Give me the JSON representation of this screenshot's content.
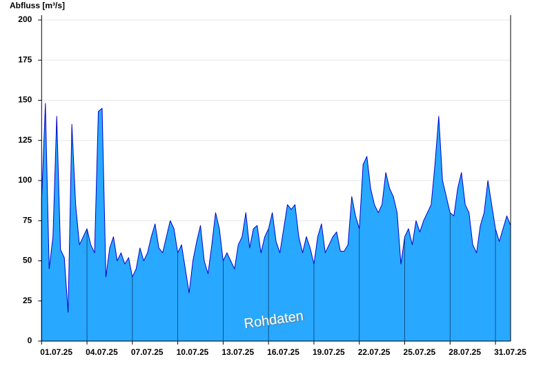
{
  "chart_data": {
    "type": "area",
    "title": "Abfluss [m³/s]",
    "annotation": "Rohdaten",
    "x": [
      1,
      1.25,
      1.5,
      1.75,
      2,
      2.25,
      2.5,
      2.75,
      3,
      3.25,
      3.5,
      3.75,
      4,
      4.25,
      4.5,
      4.75,
      5,
      5.25,
      5.5,
      5.75,
      6,
      6.25,
      6.5,
      6.75,
      7,
      7.25,
      7.5,
      7.75,
      8,
      8.25,
      8.5,
      8.75,
      9,
      9.25,
      9.5,
      9.75,
      10,
      10.25,
      10.5,
      10.75,
      11,
      11.25,
      11.5,
      11.75,
      12,
      12.25,
      12.5,
      12.75,
      13,
      13.25,
      13.5,
      13.75,
      14,
      14.25,
      14.5,
      14.75,
      15,
      15.25,
      15.5,
      15.75,
      16,
      16.25,
      16.5,
      16.75,
      17,
      17.25,
      17.5,
      17.75,
      18,
      18.25,
      18.5,
      18.75,
      19,
      19.25,
      19.5,
      19.75,
      20,
      20.25,
      20.5,
      20.75,
      21,
      21.25,
      21.5,
      21.75,
      22,
      22.25,
      22.5,
      22.75,
      23,
      23.25,
      23.5,
      23.75,
      24,
      24.25,
      24.5,
      24.75,
      25,
      25.25,
      25.5,
      25.75,
      26,
      26.25,
      26.5,
      26.75,
      27,
      27.25,
      27.5,
      27.75,
      28,
      28.25,
      28.5,
      28.75,
      29,
      29.25,
      29.5,
      29.75,
      30,
      30.25,
      30.5,
      30.75,
      31,
      31.25,
      31.5,
      31.75,
      32
    ],
    "values": [
      88,
      148,
      45,
      65,
      140,
      57,
      52,
      18,
      135,
      85,
      60,
      65,
      70,
      60,
      55,
      143,
      145,
      40,
      58,
      65,
      50,
      55,
      48,
      52,
      40,
      45,
      58,
      50,
      55,
      65,
      73,
      58,
      55,
      65,
      75,
      70,
      55,
      60,
      45,
      30,
      50,
      62,
      72,
      50,
      42,
      60,
      80,
      70,
      50,
      55,
      50,
      45,
      60,
      65,
      80,
      58,
      70,
      72,
      55,
      65,
      70,
      80,
      62,
      55,
      70,
      85,
      82,
      85,
      65,
      55,
      65,
      58,
      48,
      65,
      73,
      55,
      60,
      65,
      68,
      56,
      56,
      60,
      90,
      78,
      70,
      110,
      115,
      95,
      85,
      80,
      85,
      105,
      95,
      90,
      80,
      48,
      65,
      70,
      60,
      75,
      68,
      75,
      80,
      85,
      110,
      140,
      100,
      90,
      80,
      78,
      95,
      105,
      85,
      80,
      60,
      55,
      72,
      80,
      100,
      85,
      70,
      62,
      70,
      78,
      72
    ],
    "fill": "#29a8ff",
    "line_color": "#0000cc",
    "xlim": [
      1,
      32
    ],
    "xticks": [
      {
        "value": 1,
        "label": "01.07.25"
      },
      {
        "value": 4,
        "label": "04.07.25"
      },
      {
        "value": 7,
        "label": "07.07.25"
      },
      {
        "value": 10,
        "label": "10.07.25"
      },
      {
        "value": 13,
        "label": "13.07.25"
      },
      {
        "value": 16,
        "label": "16.07.25"
      },
      {
        "value": 19,
        "label": "19.07.25"
      },
      {
        "value": 22,
        "label": "22.07.25"
      },
      {
        "value": 25,
        "label": "25.07.25"
      },
      {
        "value": 28,
        "label": "28.07.25"
      },
      {
        "value": 31,
        "label": "31.07.25"
      }
    ],
    "ylim": [
      0,
      203
    ],
    "yticks": [
      0,
      25,
      50,
      75,
      100,
      125,
      150,
      175,
      200
    ],
    "grid": true
  }
}
